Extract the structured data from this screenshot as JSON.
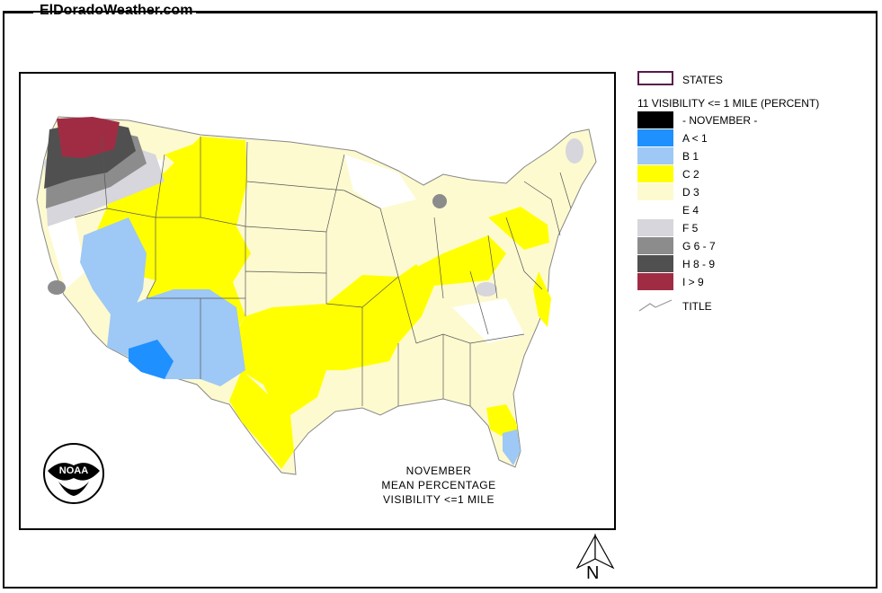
{
  "header": {
    "site_name": "ElDoradoWeather.com"
  },
  "legend": {
    "states_label": "STATES",
    "heading": "11 VISIBILITY <= 1 MILE (PERCENT)",
    "items": [
      {
        "label": "- NOVEMBER -",
        "color": "#000000"
      },
      {
        "label": "A < 1",
        "color": "#1e90ff"
      },
      {
        "label": "B 1",
        "color": "#9ec8f5"
      },
      {
        "label": "C 2",
        "color": "#ffff00"
      },
      {
        "label": "D 3",
        "color": "#fdfad0"
      },
      {
        "label": "E 4",
        "color": "#ffffff"
      },
      {
        "label": "F 5",
        "color": "#d6d6dc"
      },
      {
        "label": "G 6 - 7",
        "color": "#8c8c8c"
      },
      {
        "label": "H 8 - 9",
        "color": "#505050"
      },
      {
        "label": "I > 9",
        "color": "#a02c44"
      }
    ],
    "title_label": "TITLE"
  },
  "map": {
    "caption": [
      "NOVEMBER",
      "MEAN PERCENTAGE",
      "VISIBILITY <=1 MILE"
    ],
    "logo_text": "NOAA"
  },
  "north_arrow": {
    "label": "N"
  }
}
